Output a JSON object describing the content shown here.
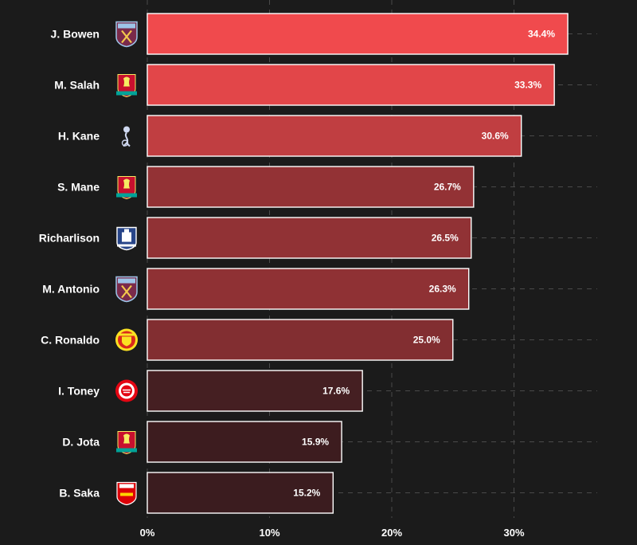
{
  "chart_data": {
    "type": "bar",
    "orientation": "horizontal",
    "title": "",
    "xlabel": "",
    "ylabel": "",
    "xlim": [
      0,
      38
    ],
    "grid": true,
    "x_ticks": [
      0,
      10,
      20,
      30
    ],
    "x_tick_labels": [
      "0%",
      "10%",
      "20%",
      "30%"
    ],
    "categories": [
      "J. Bowen",
      "M. Salah",
      "H. Kane",
      "S. Mane",
      "Richarlison",
      "M. Antonio",
      "C. Ronaldo",
      "I. Toney",
      "D. Jota",
      "B. Saka"
    ],
    "values": [
      34.4,
      33.3,
      30.6,
      26.7,
      26.5,
      26.3,
      25.0,
      17.6,
      15.9,
      15.2
    ],
    "value_labels": [
      "34.4%",
      "33.3%",
      "30.6%",
      "26.7%",
      "26.5%",
      "26.3%",
      "25.0%",
      "17.6%",
      "15.9%",
      "15.2%"
    ],
    "clubs": [
      "West Ham",
      "Liverpool",
      "Tottenham",
      "Liverpool",
      "Everton",
      "West Ham",
      "Manchester United",
      "Brentford",
      "Liverpool",
      "Arsenal"
    ],
    "club_crest_icons": [
      "west-ham-crest-icon",
      "liverpool-crest-icon",
      "tottenham-crest-icon",
      "liverpool-crest-icon",
      "everton-crest-icon",
      "west-ham-crest-icon",
      "man-united-crest-icon",
      "brentford-crest-icon",
      "liverpool-crest-icon",
      "arsenal-crest-icon"
    ]
  },
  "colors": {
    "background": "#1b1b1b",
    "bar_high": "#f04a4d",
    "bar_low": "#3b1c1f",
    "text": "#ffffff",
    "grid": "#4a4a4a"
  }
}
